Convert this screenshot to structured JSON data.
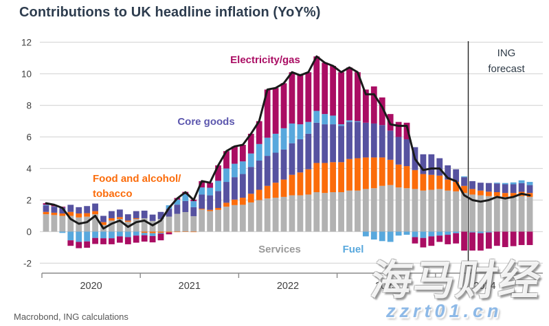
{
  "title": "Contributions to UK headline inflation (YoY%)",
  "footer": {
    "source": "Macrobond, ING calculations"
  },
  "watermark": {
    "text": "海马财经",
    "url": "zzrt01.cn"
  },
  "annotations": {
    "electricity_gas": {
      "label": "Electricity/gas",
      "color": "#aa0d63"
    },
    "core_goods": {
      "label": "Core goods",
      "color": "#5c57ae"
    },
    "food_line1": "Food and alcohol/",
    "food_line2": "tobacco",
    "food_color": "#fb6c0b",
    "services": {
      "label": "Services",
      "color": "#9a9a9a"
    },
    "fuel": {
      "label": "Fuel",
      "color": "#58a8dd"
    },
    "forecast_line1": "ING",
    "forecast_line2": "forecast",
    "forecast_color": "#2f3b47"
  },
  "chart_data": {
    "type": "bar",
    "subtype": "stacked-monthly-with-line",
    "title": "Contributions to UK headline inflation (YoY%)",
    "xlabel": "",
    "ylabel": "",
    "ylim": [
      -2.6,
      12.4
    ],
    "y_ticks": [
      12,
      10,
      8,
      6,
      4,
      2,
      0,
      -2
    ],
    "x_tick_labels": [
      "2020",
      "2021",
      "2022",
      "2023",
      "2024"
    ],
    "grid": true,
    "forecast_start_index": 52,
    "forecast_start_month": "2024-05",
    "months": [
      "2020-01",
      "2020-02",
      "2020-03",
      "2020-04",
      "2020-05",
      "2020-06",
      "2020-07",
      "2020-08",
      "2020-09",
      "2020-10",
      "2020-11",
      "2020-12",
      "2021-01",
      "2021-02",
      "2021-03",
      "2021-04",
      "2021-05",
      "2021-06",
      "2021-07",
      "2021-08",
      "2021-09",
      "2021-10",
      "2021-11",
      "2021-12",
      "2022-01",
      "2022-02",
      "2022-03",
      "2022-04",
      "2022-05",
      "2022-06",
      "2022-07",
      "2022-08",
      "2022-09",
      "2022-10",
      "2022-11",
      "2022-12",
      "2023-01",
      "2023-02",
      "2023-03",
      "2023-04",
      "2023-05",
      "2023-06",
      "2023-07",
      "2023-08",
      "2023-09",
      "2023-10",
      "2023-11",
      "2023-12",
      "2024-01",
      "2024-02",
      "2024-03",
      "2024-04",
      "2024-05",
      "2024-06",
      "2024-07",
      "2024-08",
      "2024-09",
      "2024-10",
      "2024-11",
      "2024-12"
    ],
    "series": [
      {
        "id": "services",
        "name": "Services",
        "color": "#b2b2b2",
        "values": [
          1.1,
          1.05,
          1.0,
          1.0,
          0.9,
          0.95,
          1.1,
          0.42,
          0.7,
          0.8,
          0.62,
          0.8,
          0.85,
          0.68,
          0.8,
          0.95,
          1.13,
          1.24,
          0.98,
          1.4,
          1.3,
          1.38,
          1.58,
          1.68,
          1.7,
          1.85,
          2.0,
          2.1,
          2.15,
          2.2,
          2.3,
          2.3,
          2.35,
          2.5,
          2.45,
          2.5,
          2.5,
          2.6,
          2.6,
          2.7,
          2.75,
          2.9,
          2.95,
          2.8,
          2.75,
          2.7,
          2.6,
          2.65,
          2.7,
          2.6,
          2.55,
          2.45,
          2.35,
          2.3,
          2.25,
          2.25,
          2.2,
          2.2,
          2.25,
          2.2
        ]
      },
      {
        "id": "food_alcohol_tobacco",
        "name": "Food and alcohol/tobacco",
        "color": "#fb6c0b",
        "values": [
          0.15,
          0.15,
          0.15,
          0.25,
          0.25,
          0.22,
          0.2,
          0.18,
          0.15,
          0.12,
          0.08,
          0.05,
          -0.08,
          -0.1,
          -0.08,
          -0.05,
          -0.03,
          -0.02,
          -0.03,
          0.05,
          0.08,
          0.12,
          0.25,
          0.35,
          0.45,
          0.55,
          0.65,
          0.8,
          0.95,
          1.1,
          1.3,
          1.45,
          1.6,
          1.85,
          1.9,
          1.9,
          1.9,
          2.0,
          2.05,
          2.0,
          1.95,
          1.8,
          1.6,
          1.45,
          1.4,
          1.2,
          1.05,
          0.95,
          0.85,
          0.7,
          0.6,
          0.45,
          0.35,
          0.3,
          0.28,
          0.25,
          0.25,
          0.25,
          0.27,
          0.25
        ]
      },
      {
        "id": "core_goods",
        "name": "Core goods",
        "color": "#5652a0",
        "values": [
          0.4,
          0.38,
          0.38,
          0.45,
          0.4,
          0.45,
          0.48,
          0.4,
          0.45,
          0.48,
          0.4,
          0.45,
          0.48,
          0.4,
          0.45,
          0.5,
          0.58,
          0.7,
          0.57,
          0.9,
          0.92,
          1.07,
          1.32,
          1.42,
          1.5,
          1.7,
          1.85,
          1.9,
          1.9,
          1.9,
          2.0,
          2.1,
          2.25,
          2.55,
          2.45,
          2.4,
          2.3,
          2.35,
          2.3,
          2.2,
          2.15,
          2.05,
          1.85,
          1.75,
          1.7,
          1.45,
          1.25,
          1.3,
          1.1,
          0.9,
          0.8,
          0.55,
          0.5,
          0.5,
          0.55,
          0.55,
          0.55,
          0.55,
          0.55,
          0.5
        ]
      },
      {
        "id": "fuel",
        "name": "Fuel",
        "color": "#58a8dd",
        "values": [
          0.05,
          0.02,
          -0.08,
          -0.55,
          -0.65,
          -0.62,
          -0.4,
          -0.42,
          -0.42,
          -0.3,
          -0.35,
          -0.25,
          -0.15,
          -0.18,
          -0.05,
          0.22,
          0.32,
          0.43,
          0.38,
          0.45,
          0.48,
          0.65,
          0.85,
          0.85,
          0.8,
          0.85,
          1.05,
          1.15,
          1.2,
          1.35,
          1.25,
          0.95,
          0.75,
          0.75,
          0.65,
          0.55,
          0.1,
          0.1,
          0.05,
          -0.3,
          -0.5,
          -0.6,
          -0.65,
          -0.25,
          -0.2,
          -0.35,
          -0.4,
          -0.3,
          -0.25,
          -0.2,
          -0.1,
          0.05,
          -0.05,
          -0.1,
          -0.05,
          0.05,
          0.08,
          0.12,
          0.18,
          0.2
        ]
      },
      {
        "id": "electricity_gas",
        "name": "Electricity/gas",
        "color": "#aa0d63",
        "values": [
          0.1,
          0.1,
          0.05,
          -0.35,
          -0.4,
          -0.4,
          -0.38,
          -0.38,
          -0.38,
          -0.4,
          -0.45,
          -0.45,
          -0.4,
          -0.4,
          -0.42,
          -0.12,
          0.1,
          0.15,
          0.1,
          0.4,
          0.32,
          0.98,
          1.1,
          1.1,
          1.05,
          1.25,
          1.45,
          3.05,
          2.9,
          2.85,
          3.25,
          3.1,
          3.15,
          3.45,
          3.25,
          3.15,
          3.3,
          3.35,
          3.1,
          2.1,
          2.35,
          1.75,
          1.05,
          0.95,
          1.05,
          -0.4,
          -0.6,
          -0.6,
          -0.4,
          -0.6,
          -0.65,
          -1.2,
          -1.15,
          -1.1,
          -1.03,
          -0.9,
          -0.98,
          -0.92,
          -0.85,
          -0.85
        ]
      }
    ],
    "headline": {
      "name": "Headline inflation (YoY%)",
      "color": "#1a1a1a",
      "values": [
        1.8,
        1.7,
        1.5,
        0.8,
        0.5,
        0.6,
        1.0,
        0.2,
        0.5,
        0.7,
        0.3,
        0.6,
        0.7,
        0.4,
        0.7,
        1.5,
        2.1,
        2.5,
        2.0,
        3.2,
        3.1,
        4.2,
        5.1,
        5.4,
        5.5,
        6.2,
        7.0,
        9.0,
        9.1,
        9.4,
        10.1,
        9.9,
        10.1,
        11.1,
        10.7,
        10.5,
        10.1,
        10.4,
        10.1,
        8.7,
        8.7,
        7.9,
        6.8,
        6.7,
        6.7,
        4.6,
        3.9,
        4.0,
        4.0,
        3.4,
        3.2,
        2.3,
        2.0,
        1.9,
        2.0,
        2.2,
        2.1,
        2.2,
        2.4,
        2.3
      ]
    }
  }
}
